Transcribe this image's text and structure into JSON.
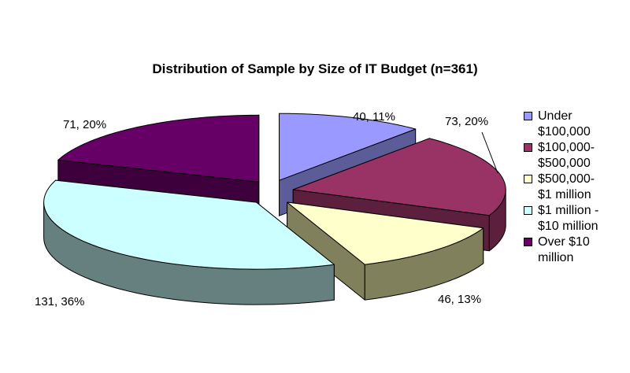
{
  "chart_data": {
    "type": "pie",
    "title": "Distribution of Sample by Size of IT Budget (n=361)",
    "style": "3d-exploded",
    "categories": [
      "Under $100,000",
      "$100,000-$500,000",
      "$500,000-$1 million",
      "$1 million - $10 million",
      "Over $10 million"
    ],
    "values": [
      40,
      73,
      46,
      131,
      71
    ],
    "data_labels": [
      "40, 11%",
      "73, 20%",
      "46, 13%",
      "131, 36%",
      "71, 20%"
    ],
    "colors": [
      "#9999ff",
      "#993366",
      "#ffffcc",
      "#ccffff",
      "#660066"
    ],
    "side_colors": [
      "#5c5c99",
      "#5c1f3d",
      "#80805c",
      "#668080",
      "#3d003d"
    ],
    "legend_position": "right",
    "legend_lines": [
      [
        "Under",
        "$100,000"
      ],
      [
        "$100,000-",
        "$500,000"
      ],
      [
        "$500,000-",
        "$1 million"
      ],
      [
        "$1 million -",
        "$10 million"
      ],
      [
        "Over $10",
        "million"
      ]
    ]
  }
}
